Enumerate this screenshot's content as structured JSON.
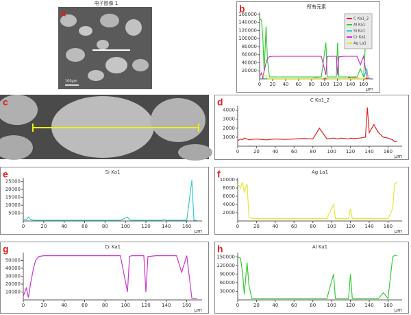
{
  "images": [
    {
      "label": "a",
      "title": "电子图像 1",
      "scale_label": "100μm"
    },
    {
      "label": "c"
    }
  ],
  "chart_data": [
    {
      "type": "line",
      "label": "b",
      "title": "所有元素",
      "xlabel": "μm",
      "legend": "upper right",
      "x": [
        0,
        3,
        5,
        7,
        10,
        12,
        15,
        20,
        30,
        40,
        50,
        60,
        70,
        80,
        87,
        95,
        102,
        104,
        106,
        110,
        118,
        120,
        122,
        130,
        136,
        138,
        140,
        145,
        147,
        150,
        155,
        160,
        165,
        167,
        170
      ],
      "xlim": [
        0,
        175
      ],
      "xticks": [
        0,
        20,
        40,
        60,
        80,
        100,
        120,
        140,
        160
      ],
      "ylim": [
        0,
        165000
      ],
      "yticks": [
        20000,
        40000,
        60000,
        80000,
        100000,
        120000,
        140000,
        160000
      ],
      "series": [
        {
          "name": "C Ka1_2",
          "color": "#e02020",
          "values": [
            600,
            800,
            700,
            900,
            800,
            700,
            750,
            800,
            700,
            800,
            750,
            800,
            850,
            800,
            2000,
            800,
            900,
            850,
            800,
            900,
            800,
            900,
            850,
            900,
            1000,
            4300,
            1500,
            2400,
            2000,
            1500,
            1000,
            900,
            700,
            500,
            600
          ]
        },
        {
          "name": "Al Ka1",
          "color": "#33cc33",
          "values": [
            150000,
            145000,
            100000,
            20000,
            130000,
            50000,
            5000,
            5000,
            5000,
            5000,
            5000,
            5000,
            5000,
            5000,
            5000,
            5000,
            90000,
            5000,
            5000,
            5000,
            5000,
            90000,
            5000,
            5000,
            5000,
            5000,
            5000,
            5000,
            5000,
            5000,
            25000,
            5000,
            150000,
            155000,
            155000
          ]
        },
        {
          "name": "Si Ka1",
          "color": "#33cccc",
          "values": [
            1000,
            800,
            2500,
            1000,
            500,
            500,
            500,
            500,
            500,
            500,
            500,
            500,
            500,
            500,
            500,
            500,
            2500,
            800,
            500,
            500,
            500,
            500,
            500,
            500,
            500,
            1000,
            500,
            500,
            500,
            500,
            500,
            500,
            26000,
            500,
            500
          ]
        },
        {
          "name": "Cr Ka1",
          "color": "#cc33cc",
          "values": [
            5000,
            15000,
            3000,
            20000,
            40000,
            50000,
            55000,
            56000,
            56000,
            56000,
            56000,
            56000,
            56000,
            56000,
            56000,
            56000,
            10000,
            55000,
            56000,
            56000,
            56000,
            10000,
            55000,
            56000,
            56000,
            56000,
            56000,
            56000,
            56000,
            56000,
            35000,
            56000,
            2000,
            2000,
            2000
          ]
        },
        {
          "name": "Ag La1",
          "color": "#e6e633",
          "values": [
            9000,
            8000,
            9500,
            7000,
            9000,
            1000,
            600,
            600,
            600,
            600,
            600,
            600,
            600,
            600,
            600,
            600,
            4000,
            600,
            600,
            600,
            600,
            3000,
            600,
            600,
            600,
            600,
            600,
            600,
            600,
            600,
            600,
            600,
            3000,
            9000,
            9500
          ]
        }
      ]
    },
    {
      "type": "line",
      "label": "d",
      "title": "C Ka1_2",
      "xlabel": "μm",
      "color": "#e02020",
      "x": [
        0,
        3,
        5,
        7,
        10,
        12,
        15,
        20,
        30,
        40,
        50,
        60,
        70,
        80,
        87,
        95,
        102,
        104,
        106,
        110,
        118,
        120,
        122,
        130,
        136,
        138,
        140,
        145,
        147,
        150,
        155,
        160,
        165,
        167,
        170
      ],
      "xlim": [
        0,
        175
      ],
      "xticks": [
        0,
        20,
        40,
        60,
        80,
        100,
        120,
        140,
        160
      ],
      "ylim": [
        0,
        4500
      ],
      "yticks": [
        1000,
        2000,
        3000,
        4000
      ],
      "values": [
        600,
        800,
        700,
        900,
        800,
        700,
        750,
        800,
        700,
        800,
        750,
        800,
        850,
        800,
        2000,
        800,
        900,
        850,
        800,
        900,
        800,
        900,
        850,
        900,
        1000,
        4300,
        1500,
        2400,
        2000,
        1500,
        1000,
        900,
        700,
        500,
        600
      ]
    },
    {
      "type": "line",
      "label": "e",
      "title": "Si Ka1",
      "xlabel": "μm",
      "color": "#33cccc",
      "x": [
        0,
        3,
        5,
        7,
        10,
        12,
        15,
        20,
        30,
        40,
        50,
        60,
        70,
        80,
        87,
        95,
        102,
        104,
        106,
        110,
        118,
        120,
        122,
        130,
        136,
        138,
        140,
        145,
        147,
        150,
        155,
        160,
        165,
        167,
        170
      ],
      "xlim": [
        0,
        175
      ],
      "xticks": [
        0,
        20,
        40,
        60,
        80,
        100,
        120,
        140,
        160
      ],
      "ylim": [
        0,
        27500
      ],
      "yticks": [
        5000,
        10000,
        15000,
        20000,
        25000
      ],
      "values": [
        1000,
        800,
        2500,
        1000,
        500,
        500,
        500,
        500,
        500,
        500,
        500,
        500,
        500,
        500,
        500,
        500,
        2500,
        800,
        500,
        500,
        500,
        500,
        500,
        500,
        500,
        1000,
        500,
        500,
        500,
        500,
        500,
        500,
        26000,
        500,
        500
      ]
    },
    {
      "type": "line",
      "label": "f",
      "title": "Ag La1",
      "xlabel": "μm",
      "color": "#e6e633",
      "x": [
        0,
        3,
        5,
        7,
        10,
        12,
        15,
        20,
        30,
        40,
        50,
        60,
        70,
        80,
        87,
        95,
        102,
        104,
        106,
        110,
        118,
        120,
        122,
        130,
        136,
        138,
        140,
        145,
        147,
        150,
        155,
        160,
        165,
        167,
        170
      ],
      "xlim": [
        0,
        175
      ],
      "xticks": [
        0,
        20,
        40,
        60,
        80,
        100,
        120,
        140,
        160
      ],
      "ylim": [
        0,
        10500
      ],
      "yticks": [
        2000,
        4000,
        6000,
        8000,
        10000
      ],
      "values": [
        9000,
        8000,
        9500,
        7000,
        9000,
        1000,
        600,
        600,
        600,
        600,
        600,
        600,
        600,
        600,
        600,
        600,
        4000,
        600,
        600,
        600,
        600,
        3000,
        600,
        600,
        600,
        600,
        600,
        600,
        600,
        600,
        600,
        600,
        3000,
        9000,
        9500
      ]
    },
    {
      "type": "line",
      "label": "g",
      "title": "Cr Ka1",
      "xlabel": "μm",
      "color": "#cc33cc",
      "x": [
        0,
        3,
        5,
        7,
        10,
        12,
        15,
        20,
        30,
        40,
        50,
        60,
        70,
        80,
        87,
        95,
        102,
        104,
        106,
        110,
        118,
        120,
        122,
        130,
        136,
        138,
        140,
        145,
        147,
        150,
        155,
        160,
        165,
        167,
        170
      ],
      "xlim": [
        0,
        175
      ],
      "xticks": [
        0,
        20,
        40,
        60,
        80,
        100,
        120,
        140,
        160
      ],
      "ylim": [
        0,
        60000
      ],
      "yticks": [
        10000,
        20000,
        30000,
        40000,
        50000
      ],
      "values": [
        5000,
        15000,
        3000,
        20000,
        40000,
        50000,
        55000,
        56000,
        56000,
        56000,
        56000,
        56000,
        56000,
        56000,
        56000,
        56000,
        10000,
        55000,
        56000,
        56000,
        56000,
        10000,
        55000,
        56000,
        56000,
        56000,
        56000,
        56000,
        56000,
        56000,
        35000,
        56000,
        2000,
        2000,
        2000
      ]
    },
    {
      "type": "line",
      "label": "h",
      "title": "Al Ka1",
      "xlabel": "μm",
      "color": "#33cc33",
      "x": [
        0,
        3,
        5,
        7,
        10,
        12,
        15,
        20,
        30,
        40,
        50,
        60,
        70,
        80,
        87,
        95,
        102,
        104,
        106,
        110,
        118,
        120,
        122,
        130,
        136,
        138,
        140,
        145,
        147,
        150,
        155,
        160,
        165,
        167,
        170
      ],
      "xlim": [
        0,
        175
      ],
      "xticks": [
        0,
        20,
        40,
        60,
        80,
        100,
        120,
        140,
        160
      ],
      "ylim": [
        0,
        165000
      ],
      "yticks": [
        30000,
        60000,
        90000,
        120000,
        150000
      ],
      "values": [
        150000,
        145000,
        100000,
        20000,
        130000,
        50000,
        5000,
        5000,
        5000,
        5000,
        5000,
        5000,
        5000,
        5000,
        5000,
        5000,
        90000,
        5000,
        5000,
        5000,
        5000,
        90000,
        5000,
        5000,
        5000,
        5000,
        5000,
        5000,
        5000,
        5000,
        25000,
        5000,
        150000,
        155000,
        155000
      ]
    }
  ]
}
